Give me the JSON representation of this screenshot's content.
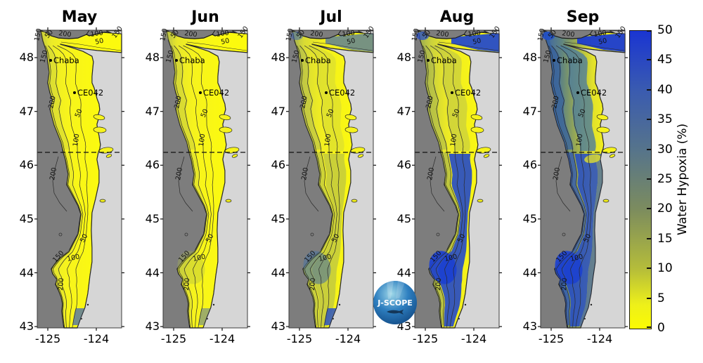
{
  "chart_data": {
    "type": "heatmap",
    "title": "",
    "months": [
      "May",
      "Jun",
      "Jul",
      "Aug",
      "Sep"
    ],
    "x_ticks": [
      "-125",
      "-124"
    ],
    "y_ticks": [
      "48",
      "47",
      "46",
      "45",
      "44",
      "43"
    ],
    "xlabel": "",
    "ylabel": "",
    "colorbar": {
      "label": "Water Hypoxia (%)",
      "min": 0,
      "max": 50,
      "ticks": [
        "50",
        "45",
        "40",
        "35",
        "30",
        "25",
        "20",
        "15",
        "10",
        "5",
        "0"
      ],
      "top_color": "#1a35d2",
      "bottom_color": "#fbfb02"
    },
    "stations": [
      {
        "name": "Chaba"
      },
      {
        "name": "CE042"
      }
    ],
    "contour_levels": [
      "50",
      "100",
      "150",
      "200"
    ],
    "map_colors": {
      "deep_ocean": "#7d7d7d",
      "land": "#d6d6d6",
      "estuary": "#f6f31c",
      "contour_line": "#2a2a2a"
    },
    "panel_styles": {
      "May": {
        "base": [
          [
            0,
            "#cfd338"
          ],
          [
            0.18,
            "#eceb28"
          ],
          [
            0.45,
            "#f7f41c"
          ],
          [
            1,
            "#fcfa0e"
          ]
        ],
        "overlays": {
          "fringeN": [
            "#cdd13c",
            0.45
          ],
          "fringeS": [
            "#d5d63c",
            0.3
          ],
          "bottomInner": [
            "#4668b4",
            0.75
          ]
        }
      },
      "Jun": {
        "base": [
          [
            0,
            "#c5cc3e"
          ],
          [
            0.18,
            "#e8e72a"
          ],
          [
            0.45,
            "#f6f31d"
          ],
          [
            1,
            "#fcfa0e"
          ]
        ],
        "overlays": {
          "fringeN": [
            "#c5cc3e",
            0.5
          ],
          "fringeS": [
            "#ccd23c",
            0.4
          ],
          "heceta": [
            "#aab84e",
            0.35
          ],
          "mouth": [
            "#b9c24a",
            0.3
          ],
          "bottomInner": [
            "#4668b4",
            0.5
          ]
        }
      },
      "Jul": {
        "base": [
          [
            0,
            "#aab84e"
          ],
          [
            0.2,
            "#d9db34"
          ],
          [
            0.5,
            "#f2ef20"
          ],
          [
            1,
            "#fbf810"
          ]
        ],
        "overlays": {
          "fringeN": [
            "#b0b94d",
            0.5
          ],
          "fringeS": [
            "#aab84e",
            0.5
          ],
          "northMid": [
            "#ccd23e",
            0.45
          ],
          "southBand": [
            "#9fae55",
            0.5
          ],
          "heceta": [
            "#4f759f",
            0.6
          ],
          "mouth": [
            "#4065b0",
            0.55
          ],
          "bottomInner": [
            "#2b52c4",
            0.85
          ],
          "straitEast": [
            "#3f66b2",
            0.7
          ]
        }
      },
      "Aug": {
        "base": [
          [
            0,
            "#9aab52"
          ],
          [
            0.22,
            "#ccd23c"
          ],
          [
            0.5,
            "#eeeb24"
          ],
          [
            1,
            "#faf713"
          ]
        ],
        "overlays": {
          "fringeN": [
            "#a8b44c",
            0.55
          ],
          "fringeS": [
            "#9fae4e",
            0.6
          ],
          "northMid": [
            "#b9c24a",
            0.55
          ],
          "southBand": [
            "#1e44cd",
            0.88
          ],
          "heceta": [
            "#1b40d0",
            0.92
          ],
          "mouth": [
            "#2a50c8",
            0.75
          ],
          "straitEast": [
            "#1f45cf",
            0.92
          ]
        }
      },
      "Sep": {
        "base": [
          [
            0,
            "#3a63a8"
          ],
          [
            0.3,
            "#61857f"
          ],
          [
            0.55,
            "#9fae4e"
          ],
          [
            0.8,
            "#e0e02c"
          ],
          [
            1,
            "#f2ef1e"
          ]
        ],
        "overlays": {
          "fringeN": [
            "#35609f",
            0.75
          ],
          "fringeS": [
            "#2c55b8",
            0.75
          ],
          "northMid": [
            "#4f7d9b",
            0.8
          ],
          "southBand": [
            "#2149c9",
            0.85
          ],
          "coastStripS": [
            "#2f55b8",
            0.7
          ],
          "heceta": [
            "#1c41cf",
            0.92
          ],
          "mouth": [
            "#2150c8",
            0.9
          ],
          "straitEast": [
            "#1a3bd2",
            0.95
          ],
          "columbiaPatch": [
            "#e0df2e",
            0.8
          ]
        }
      }
    }
  },
  "logo": {
    "text": "J-SCOPE"
  }
}
